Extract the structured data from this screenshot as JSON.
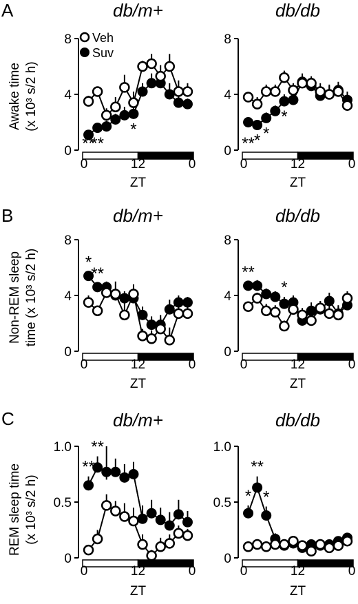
{
  "figure": {
    "panel_letters": [
      "A",
      "B",
      "C"
    ],
    "ylabels": [
      [
        "Awake time",
        "(x 10³ s/2 h)"
      ],
      [
        "Non-REM sleep",
        "time (x 10³ s/2 h)"
      ],
      [
        "REM sleep time",
        "(x 10³ s/2 h)"
      ]
    ],
    "column_titles": [
      "db/m+",
      "db/db"
    ],
    "xlabel": "ZT",
    "xticks": [
      "0",
      "12",
      "0"
    ],
    "legend": [
      {
        "label": "Veh",
        "marker": "open-circle"
      },
      {
        "label": "Suv",
        "marker": "filled-circle"
      }
    ],
    "colors": {
      "veh_fill": "#ffffff",
      "suv_fill": "#000000",
      "line": "#000000",
      "light_phase": "#ffffff",
      "dark_phase": "#000000"
    }
  },
  "chart_data": [
    {
      "type": "line",
      "panel": "A",
      "title": "db/m+",
      "xlabel": "ZT",
      "ylabel": "Awake time (x 10³ s/2 h)",
      "x": [
        1,
        3,
        5,
        7,
        9,
        11,
        13,
        15,
        17,
        19,
        21,
        23
      ],
      "ylim": [
        0,
        8
      ],
      "yticks": [
        "0",
        "4",
        "8"
      ],
      "series": [
        {
          "name": "Veh",
          "values": [
            3.5,
            4.2,
            2.5,
            3.1,
            4.5,
            3.4,
            6.0,
            6.2,
            5.3,
            6.0,
            4.2,
            4.2
          ],
          "err": [
            0.4,
            0.3,
            0.5,
            0.7,
            0.9,
            0.8,
            0.4,
            0.7,
            0.8,
            0.9,
            0.8,
            0.6
          ]
        },
        {
          "name": "Suv",
          "values": [
            1.1,
            1.6,
            1.7,
            2.2,
            2.5,
            2.6,
            4.2,
            4.8,
            4.8,
            4.0,
            3.4,
            3.3
          ],
          "err": [
            0.3,
            0.3,
            0.4,
            0.4,
            0.6,
            0.6,
            0.6,
            0.7,
            0.7,
            0.8,
            0.5,
            0.4
          ]
        }
      ],
      "annotations": [
        "**",
        "**",
        "*"
      ]
    },
    {
      "type": "line",
      "panel": "A",
      "title": "db/db",
      "xlabel": "ZT",
      "ylabel": "",
      "x": [
        1,
        3,
        5,
        7,
        9,
        11,
        13,
        15,
        17,
        19,
        21,
        23
      ],
      "ylim": [
        0,
        8
      ],
      "yticks": [
        "0",
        "4",
        "8"
      ],
      "series": [
        {
          "name": "Veh",
          "values": [
            3.8,
            3.3,
            4.2,
            4.2,
            5.2,
            4.3,
            4.8,
            4.8,
            4.2,
            4.0,
            4.2,
            3.2
          ],
          "err": [
            0.3,
            0.5,
            0.5,
            0.5,
            0.5,
            0.5,
            0.5,
            0.5,
            0.6,
            0.6,
            0.5,
            0.5
          ]
        },
        {
          "name": "Suv",
          "values": [
            2.0,
            1.8,
            2.3,
            2.8,
            3.5,
            3.6,
            4.9,
            4.6,
            3.9,
            4.0,
            4.3,
            3.6
          ],
          "err": [
            0.3,
            0.3,
            0.4,
            0.4,
            0.5,
            0.5,
            0.6,
            0.6,
            0.6,
            0.7,
            0.6,
            0.6
          ]
        }
      ],
      "annotations": [
        "**",
        "*",
        "*",
        "*"
      ]
    },
    {
      "type": "line",
      "panel": "B",
      "title": "db/m+",
      "xlabel": "ZT",
      "ylabel": "Non-REM sleep time (x 10³ s/2 h)",
      "x": [
        1,
        3,
        5,
        7,
        9,
        11,
        13,
        15,
        17,
        19,
        21,
        23
      ],
      "ylim": [
        0,
        8
      ],
      "yticks": [
        "0",
        "4",
        "8"
      ],
      "series": [
        {
          "name": "Veh",
          "values": [
            3.5,
            2.9,
            4.2,
            4.1,
            2.6,
            4.1,
            1.1,
            0.9,
            1.6,
            0.8,
            2.7,
            2.7
          ],
          "err": [
            0.5,
            0.3,
            0.5,
            0.9,
            0.9,
            0.7,
            0.5,
            0.6,
            0.8,
            0.9,
            0.9,
            0.6
          ]
        },
        {
          "name": "Suv",
          "values": [
            5.4,
            4.6,
            4.6,
            4.0,
            3.8,
            3.8,
            2.6,
            1.9,
            1.9,
            3.0,
            3.5,
            3.5
          ],
          "err": [
            0.3,
            0.3,
            0.4,
            0.4,
            0.5,
            0.5,
            0.6,
            0.6,
            0.7,
            0.7,
            0.5,
            0.4
          ]
        }
      ],
      "annotations": [
        "*",
        "**"
      ]
    },
    {
      "type": "line",
      "panel": "B",
      "title": "db/db",
      "xlabel": "ZT",
      "ylabel": "",
      "x": [
        1,
        3,
        5,
        7,
        9,
        11,
        13,
        15,
        17,
        19,
        21,
        23
      ],
      "ylim": [
        0,
        8
      ],
      "yticks": [
        "0",
        "4",
        "8"
      ],
      "series": [
        {
          "name": "Veh",
          "values": [
            3.2,
            3.8,
            2.9,
            2.8,
            1.8,
            3.0,
            2.6,
            2.2,
            3.1,
            2.7,
            2.6,
            3.8
          ],
          "err": [
            0.3,
            0.4,
            0.5,
            0.5,
            0.4,
            0.5,
            0.5,
            0.5,
            0.5,
            0.6,
            0.6,
            0.5
          ]
        },
        {
          "name": "Suv",
          "values": [
            4.7,
            4.7,
            4.1,
            3.9,
            3.4,
            3.5,
            2.2,
            2.9,
            3.0,
            3.6,
            2.7,
            3.3
          ],
          "err": [
            0.3,
            0.4,
            0.4,
            0.4,
            0.5,
            0.5,
            0.6,
            0.6,
            0.6,
            0.6,
            0.6,
            0.6
          ]
        }
      ],
      "annotations": [
        "**",
        "*"
      ]
    },
    {
      "type": "line",
      "panel": "C",
      "title": "db/m+",
      "xlabel": "ZT",
      "ylabel": "REM sleep time (x 10³ s/2 h)",
      "x": [
        1,
        3,
        5,
        7,
        9,
        11,
        13,
        15,
        17,
        19,
        21,
        23
      ],
      "ylim": [
        0,
        1.0
      ],
      "yticks": [
        "0",
        "0.5",
        "1.0"
      ],
      "series": [
        {
          "name": "Veh",
          "values": [
            0.07,
            0.17,
            0.47,
            0.42,
            0.37,
            0.33,
            0.12,
            0.02,
            0.1,
            0.13,
            0.22,
            0.2
          ],
          "err": [
            0.03,
            0.08,
            0.1,
            0.09,
            0.12,
            0.12,
            0.09,
            0.05,
            0.08,
            0.08,
            0.07,
            0.06
          ]
        },
        {
          "name": "Suv",
          "values": [
            0.65,
            0.81,
            0.77,
            0.77,
            0.72,
            0.75,
            0.35,
            0.4,
            0.34,
            0.29,
            0.39,
            0.32
          ],
          "err": [
            0.08,
            0.1,
            0.23,
            0.12,
            0.12,
            0.11,
            0.12,
            0.12,
            0.11,
            0.12,
            0.13,
            0.1
          ]
        }
      ],
      "annotations": [
        "**",
        "**"
      ]
    },
    {
      "type": "line",
      "panel": "C",
      "title": "db/db",
      "xlabel": "ZT",
      "ylabel": "",
      "x": [
        1,
        3,
        5,
        7,
        9,
        11,
        13,
        15,
        17,
        19,
        21,
        23
      ],
      "ylim": [
        0,
        1.0
      ],
      "yticks": [
        "0",
        "0.5",
        "1.0"
      ],
      "series": [
        {
          "name": "Veh",
          "values": [
            0.1,
            0.12,
            0.1,
            0.12,
            0.12,
            0.15,
            0.11,
            0.06,
            0.12,
            0.09,
            0.11,
            0.15
          ],
          "err": [
            0.02,
            0.03,
            0.03,
            0.03,
            0.04,
            0.04,
            0.04,
            0.03,
            0.04,
            0.04,
            0.04,
            0.04
          ]
        },
        {
          "name": "Suv",
          "values": [
            0.4,
            0.63,
            0.38,
            0.17,
            0.11,
            0.13,
            0.09,
            0.12,
            0.11,
            0.12,
            0.15,
            0.18
          ],
          "err": [
            0.07,
            0.1,
            0.08,
            0.05,
            0.04,
            0.04,
            0.04,
            0.04,
            0.04,
            0.04,
            0.04,
            0.04
          ]
        }
      ],
      "annotations": [
        "*",
        "**",
        "*"
      ]
    }
  ]
}
